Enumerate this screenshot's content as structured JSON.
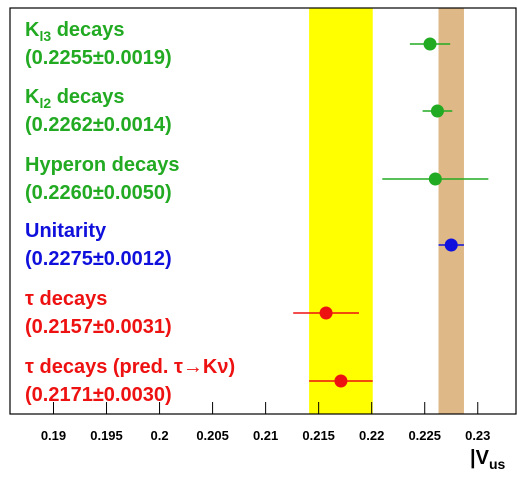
{
  "chart_data": {
    "type": "errorbar",
    "xlim": [
      0.1859,
      0.2337
    ],
    "xticks": [
      0.19,
      0.195,
      0.2,
      0.205,
      0.21,
      0.215,
      0.22,
      0.225,
      0.23
    ],
    "x_label": {
      "text": "|V",
      "sub": "us"
    },
    "bands": [
      {
        "range": [
          0.2141,
          0.2201
        ],
        "color": "#ffff00"
      },
      {
        "range": [
          0.2263,
          0.2287
        ],
        "color": "#deb887"
      }
    ],
    "rows": [
      {
        "label": {
          "text": "K",
          "sub": "l3",
          "after": " decays"
        },
        "value": 0.2255,
        "error": 0.0019,
        "value_label": "(0.2255±0.0019)",
        "color": "#22aa22"
      },
      {
        "label": {
          "text": "K",
          "sub": "l2",
          "after": " decays"
        },
        "value": 0.2262,
        "error": 0.0014,
        "value_label": "(0.2262±0.0014)",
        "color": "#22aa22"
      },
      {
        "label": {
          "text": "Hyperon decays"
        },
        "value": 0.226,
        "error": 0.005,
        "value_label": "(0.2260±0.0050)",
        "color": "#22aa22"
      },
      {
        "label": {
          "text": "Unitarity"
        },
        "value": 0.2275,
        "error": 0.0012,
        "value_label": "(0.2275±0.0012)",
        "color": "#1010dd"
      },
      {
        "label": {
          "text": "τ decays"
        },
        "value": 0.2157,
        "error": 0.0031,
        "value_label": "(0.2157±0.0031)",
        "color": "#ee1111"
      },
      {
        "label": {
          "text": "τ decays (pred. τ→Kν)"
        },
        "value": 0.2171,
        "error": 0.003,
        "value_label": "(0.2171±0.0030)",
        "color": "#ee1111"
      }
    ]
  }
}
